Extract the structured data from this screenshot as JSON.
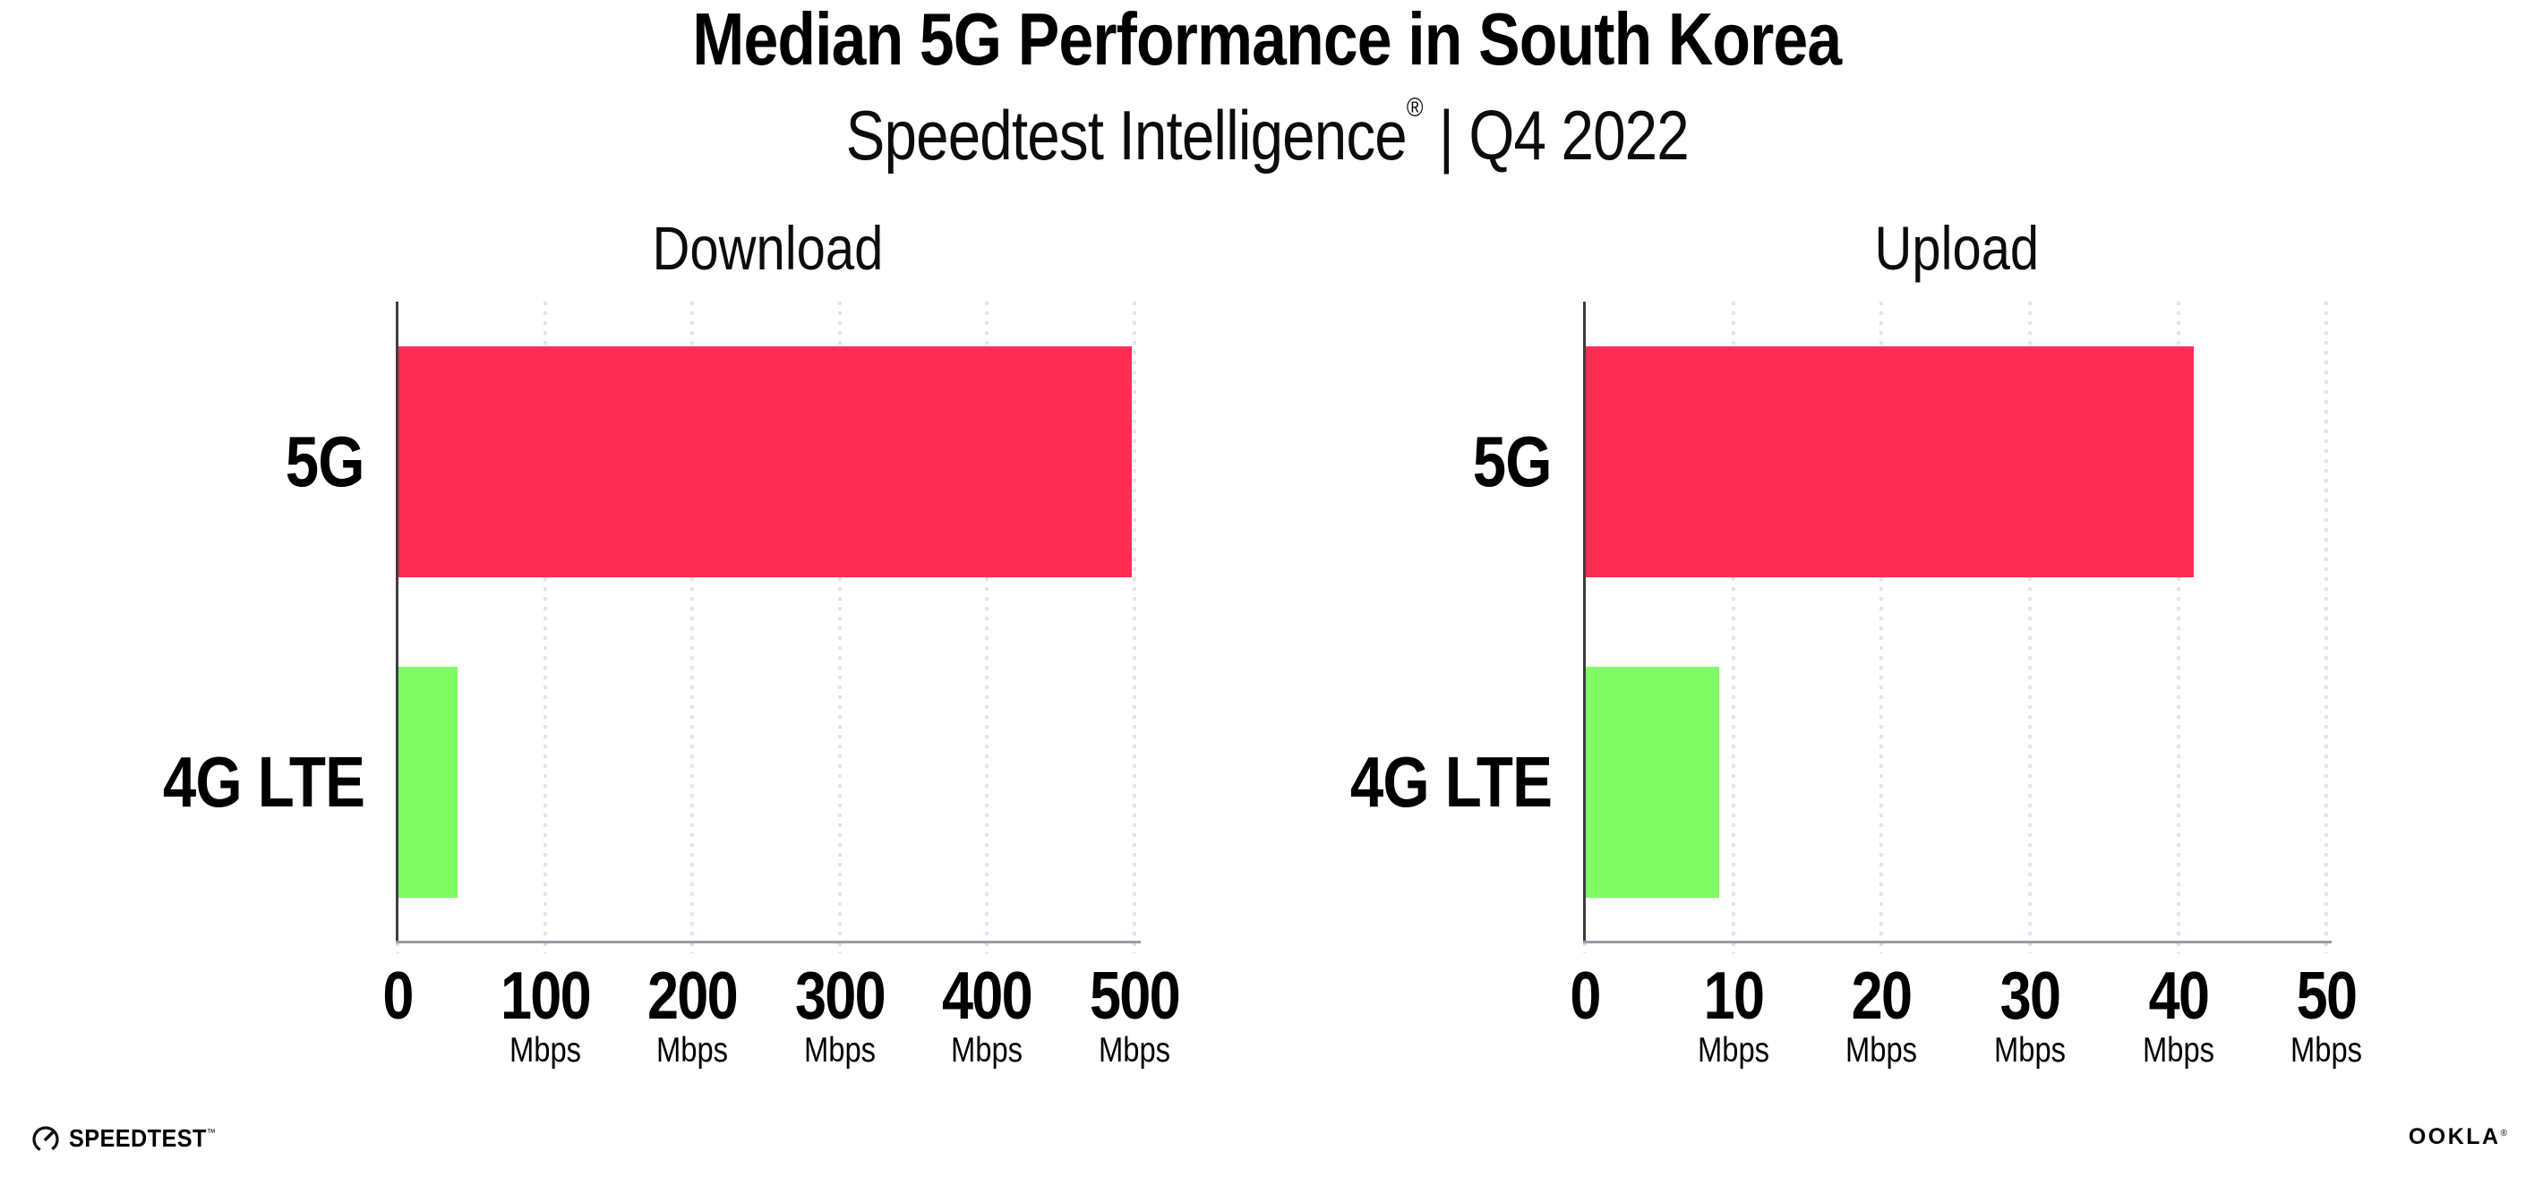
{
  "header": {
    "title": "Median 5G Performance in South Korea",
    "subtitle": {
      "brand": "Speedtest Intelligence",
      "registered": "®",
      "rest": " | Q4 2022"
    }
  },
  "chart_data": [
    {
      "type": "bar",
      "orientation": "horizontal",
      "title": "Download",
      "categories": [
        "5G",
        "4G LTE"
      ],
      "values": [
        498,
        40
      ],
      "unit": "Mbps",
      "series_colors": [
        "#FF2D55",
        "#7FFB63"
      ],
      "xlim": [
        0,
        502
      ],
      "xticks": [
        0,
        100,
        200,
        300,
        400,
        500
      ],
      "tick_unit": "Mbps",
      "grid": "dotted-vertical",
      "legend": "none"
    },
    {
      "type": "bar",
      "orientation": "horizontal",
      "title": "Upload",
      "categories": [
        "5G",
        "4G LTE"
      ],
      "values": [
        41,
        9
      ],
      "unit": "Mbps",
      "series_colors": [
        "#FF2D55",
        "#7FFB63"
      ],
      "xlim": [
        0,
        50.1
      ],
      "xticks": [
        0,
        10,
        20,
        30,
        40,
        50
      ],
      "tick_unit": "Mbps",
      "grid": "dotted-vertical",
      "legend": "none"
    }
  ],
  "colors": {
    "bar_5g": "#FF2D55",
    "bar_4g_lte": "#7FFB63",
    "gridline": "#E3E4EE",
    "y_axis": "#3D3D3D",
    "x_axis": "#9A9AA0",
    "text": "#000000",
    "background": "#FFFFFF"
  },
  "footer": {
    "speedtest_label": "SPEEDTEST",
    "speedtest_tm": "™",
    "ookla_label": "OOKLA",
    "ookla_reg": "®"
  }
}
